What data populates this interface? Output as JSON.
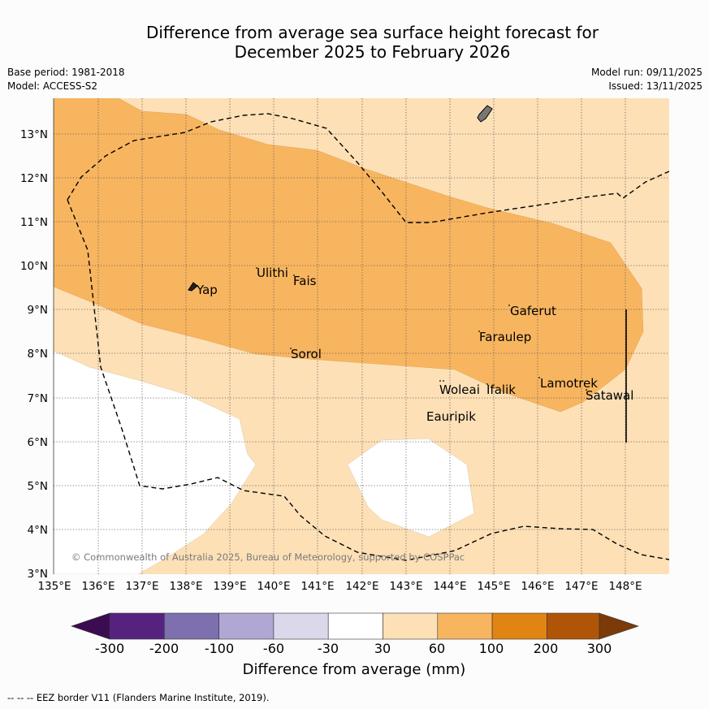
{
  "header": {
    "title_line1": "Difference from average sea surface height forecast for",
    "title_line2": "December 2025 to February 2026",
    "base_period": "Base period: 1981-2018",
    "model": "Model: ACCESS-S2",
    "model_run": "Model run: 09/11/2025",
    "issued": "Issued: 13/11/2025"
  },
  "map": {
    "lon_labels": [
      "135°E",
      "136°E",
      "137°E",
      "138°E",
      "139°E",
      "140°E",
      "141°E",
      "142°E",
      "143°E",
      "144°E",
      "145°E",
      "146°E",
      "147°E",
      "148°E"
    ],
    "lat_labels": [
      "13°N",
      "12°N",
      "11°N",
      "10°N",
      "9°N",
      "8°N",
      "7°N",
      "6°N",
      "5°N",
      "4°N",
      "3°N"
    ],
    "places": [
      "Ulithi",
      "Yap",
      "Fais",
      "Gaferut",
      "Faraulep",
      "Sorol",
      "Woleai",
      "Ifalik",
      "Lamotrek",
      "Satawal",
      "Eauripik"
    ],
    "copyright": "© Commonwealth of Australia 2025, Bureau of Meteorology, supported by COSPPac"
  },
  "colorbar": {
    "ticks": [
      "-300",
      "-200",
      "-100",
      "-60",
      "-30",
      "30",
      "60",
      "100",
      "200",
      "300"
    ],
    "label": "Difference from average (mm)",
    "colors": [
      "#3c0c52",
      "#55237f",
      "#7e70ae",
      "#b0a8d2",
      "#dad8ea",
      "#ffffff",
      "#fde0b6",
      "#f8b560",
      "#e08414",
      "#b05508",
      "#7c3a08"
    ]
  },
  "legend": {
    "eez_note": "--  --  -- EEZ border V11 (Flanders Marine Institute, 2019)."
  }
}
